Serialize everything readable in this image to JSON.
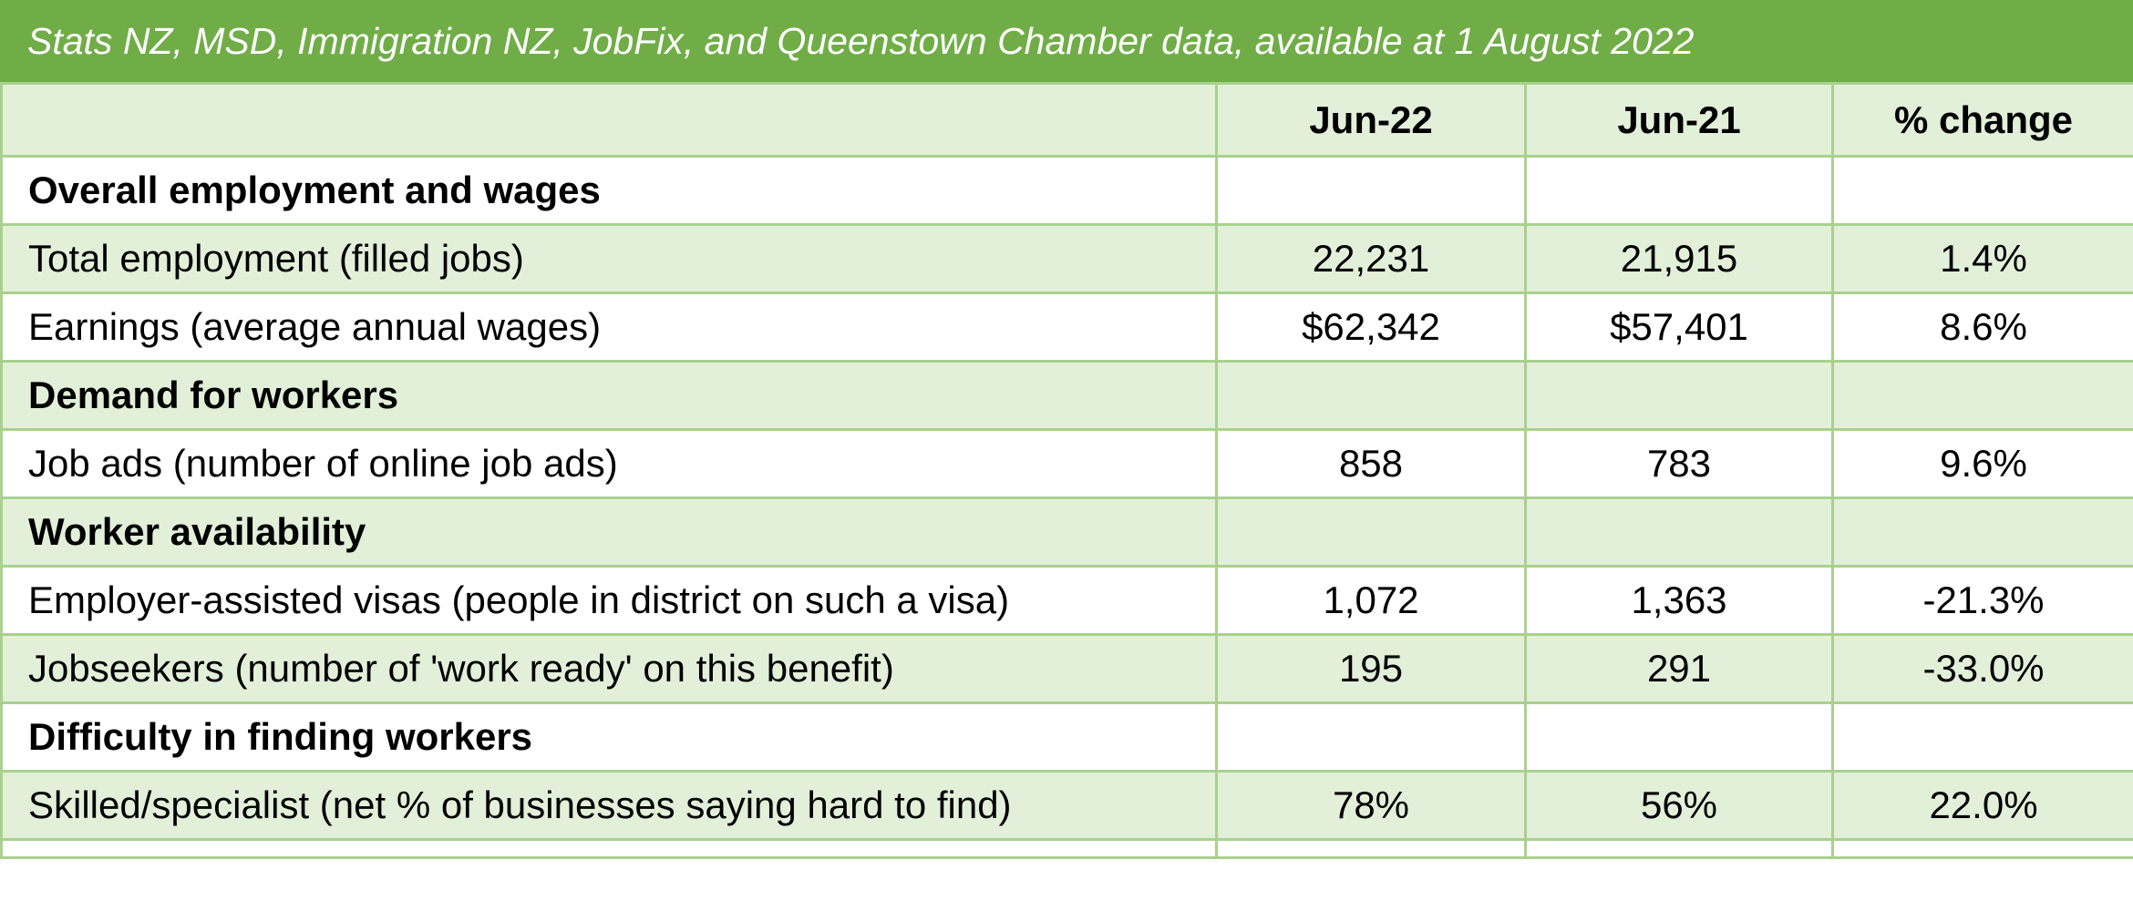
{
  "header": {
    "title": "Stats NZ, MSD, Immigration NZ, JobFix, and Queenstown Chamber data, available at 1 August 2022"
  },
  "table": {
    "columns": [
      "Jun-22",
      "Jun-21",
      "% change"
    ],
    "rows": [
      {
        "label": "Overall employment and wages"
      },
      {
        "label": "Total employment (filled jobs)",
        "values": [
          "22,231",
          "21,915",
          "1.4%"
        ]
      },
      {
        "label": "Earnings (average annual wages)",
        "values": [
          "$62,342",
          "$57,401",
          "8.6%"
        ]
      },
      {
        "label": "Demand for workers"
      },
      {
        "label": "Job ads (number of online job ads)",
        "values": [
          "858",
          "783",
          "9.6%"
        ]
      },
      {
        "label": "Worker availability"
      },
      {
        "label": "Employer-assisted visas (people in district on such a visa)",
        "values": [
          "1,072",
          "1,363",
          "-21.3%"
        ]
      },
      {
        "label": "Jobseekers (number of 'work ready' on this benefit)",
        "values": [
          "195",
          "291",
          "-33.0%"
        ]
      },
      {
        "label": "Difficulty in finding workers"
      },
      {
        "label": "Skilled/specialist (net % of businesses saying hard to find)",
        "values": [
          "78%",
          "56%",
          "22.0%"
        ]
      }
    ]
  }
}
